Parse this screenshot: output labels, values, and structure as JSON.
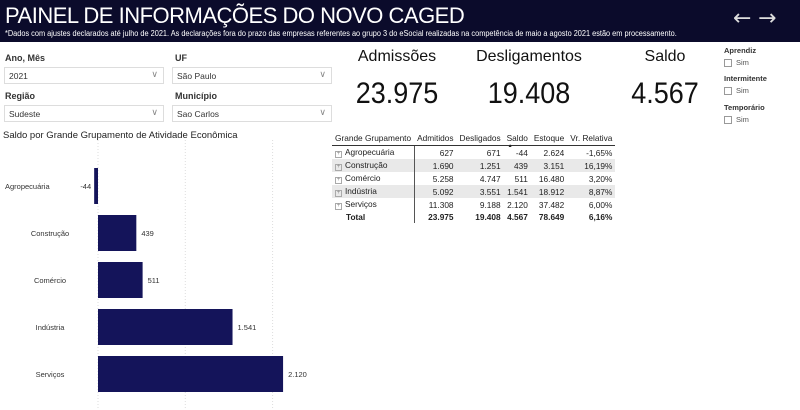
{
  "header": {
    "title": "PAINEL DE INFORMAÇÕES DO NOVO CAGED",
    "subtitle": "*Dados com ajustes declarados até julho de 2021. As declarações fora do prazo das empresas referentes ao grupo 3 do eSocial realizadas na competência de maio a agosto 2021 estão em processamento.",
    "back": "←",
    "forward": "→"
  },
  "filters": {
    "ano_label": "Ano, Mês",
    "ano_value": "2021",
    "uf_label": "UF",
    "uf_value": "São Paulo",
    "regiao_label": "Região",
    "regiao_value": "Sudeste",
    "municipio_label": "Município",
    "municipio_value": "Sao Carlos",
    "chevron": "∨"
  },
  "kpis": {
    "admissoes_label": "Admissões",
    "admissoes": "23.975",
    "deslig_label": "Desligamentos",
    "deslig": "19.408",
    "saldo_label": "Saldo",
    "saldo": "4.567"
  },
  "checks": {
    "aprendiz": "Aprendiz",
    "intermitente": "Intermitente",
    "temporario": "Temporário",
    "sim": "Sim"
  },
  "table": {
    "headers": [
      "Grande Grupamento",
      "Admitidos",
      "Desligados",
      "Saldo",
      "Estoque",
      "Vr. Relativa"
    ],
    "sort_indicator": "▲",
    "rows": [
      [
        "Agropecuária",
        "627",
        "671",
        "-44",
        "2.624",
        "-1,65%"
      ],
      [
        "Construção",
        "1.690",
        "1.251",
        "439",
        "3.151",
        "16,19%"
      ],
      [
        "Comércio",
        "5.258",
        "4.747",
        "511",
        "16.480",
        "3,20%"
      ],
      [
        "Indústria",
        "5.092",
        "3.551",
        "1.541",
        "18.912",
        "8,87%"
      ],
      [
        "Serviços",
        "11.308",
        "9.188",
        "2.120",
        "37.482",
        "6,00%"
      ]
    ],
    "total": [
      "Total",
      "23.975",
      "19.408",
      "4.567",
      "78.649",
      "6,16%"
    ]
  },
  "chart_data": {
    "type": "bar",
    "orientation": "horizontal",
    "title": "Saldo por Grande Grupamento de Atividade Econômica",
    "categories": [
      "Agropecuária",
      "Construção",
      "Comércio",
      "Indústria",
      "Serviços"
    ],
    "values": [
      -44,
      439,
      511,
      1541,
      2120
    ],
    "data_labels": [
      "-44",
      "439",
      "511",
      "1.541",
      "2.120"
    ],
    "grid": true,
    "xlim": [
      -100,
      2600
    ],
    "bar_color": "#14145a"
  }
}
